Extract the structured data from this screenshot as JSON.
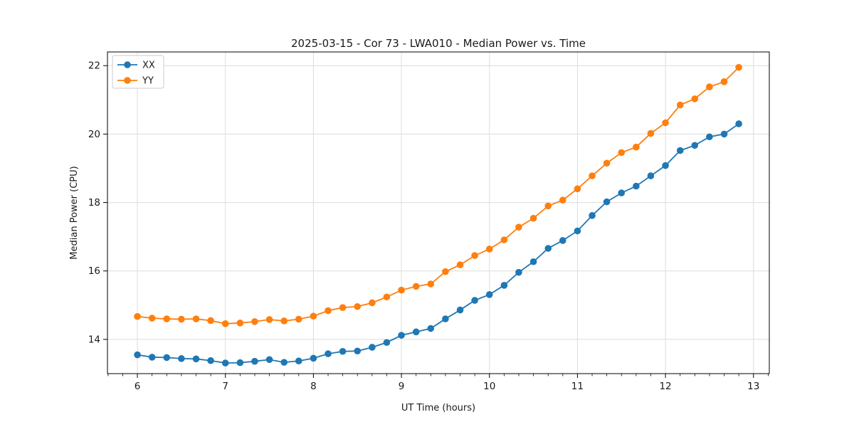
{
  "figure": {
    "background": "#ffffff",
    "spine_color": "#000000",
    "grid_color": "#dcdcdc",
    "tick_label_color": "#1a1a1a"
  },
  "legend": {
    "entries": [
      {
        "label": "XX",
        "color": "#1f77b4"
      },
      {
        "label": "YY",
        "color": "#ff7f0e"
      }
    ],
    "position": "upper left",
    "border_color": "#cccccc"
  },
  "chart_data": {
    "type": "line",
    "title": "2025-03-15 - Cor 73 - LWA010 - Median Power vs. Time",
    "xlabel": "UT Time (hours)",
    "ylabel": "Median Power (CPU)",
    "xlim": [
      5.66,
      13.18
    ],
    "ylim": [
      13.0,
      22.4
    ],
    "x_ticks": [
      6,
      7,
      8,
      9,
      10,
      11,
      12,
      13
    ],
    "y_ticks": [
      14,
      16,
      18,
      20,
      22
    ],
    "x_minor_tick_step": 0.16667,
    "grid": true,
    "legend_position": "upper left",
    "marker": "circle",
    "x": [
      6.0,
      6.167,
      6.333,
      6.5,
      6.667,
      6.833,
      7.0,
      7.167,
      7.333,
      7.5,
      7.667,
      7.833,
      8.0,
      8.167,
      8.333,
      8.5,
      8.667,
      8.833,
      9.0,
      9.167,
      9.333,
      9.5,
      9.667,
      9.833,
      10.0,
      10.167,
      10.333,
      10.5,
      10.667,
      10.833,
      11.0,
      11.167,
      11.333,
      11.5,
      11.667,
      11.833,
      12.0,
      12.167,
      12.333,
      12.5,
      12.667,
      12.833
    ],
    "series": [
      {
        "name": "XX",
        "color": "#1f77b4",
        "values": [
          13.55,
          13.48,
          13.47,
          13.44,
          13.43,
          13.38,
          13.31,
          13.32,
          13.36,
          13.41,
          13.33,
          13.37,
          13.45,
          13.58,
          13.65,
          13.66,
          13.77,
          13.91,
          14.12,
          14.22,
          14.32,
          14.6,
          14.86,
          15.14,
          15.31,
          15.58,
          15.96,
          16.27,
          16.66,
          16.89,
          17.17,
          17.62,
          18.02,
          18.28,
          18.48,
          18.78,
          19.08,
          19.52,
          19.67,
          19.92,
          20.0,
          20.3
        ]
      },
      {
        "name": "YY",
        "color": "#ff7f0e",
        "values": [
          14.67,
          14.62,
          14.6,
          14.59,
          14.6,
          14.55,
          14.46,
          14.48,
          14.52,
          14.58,
          14.54,
          14.59,
          14.68,
          14.84,
          14.93,
          14.96,
          15.07,
          15.24,
          15.44,
          15.55,
          15.62,
          15.98,
          16.18,
          16.45,
          16.64,
          16.91,
          17.28,
          17.54,
          17.9,
          18.07,
          18.4,
          18.78,
          19.15,
          19.46,
          19.62,
          20.02,
          20.33,
          20.85,
          21.03,
          21.38,
          21.53,
          21.95
        ]
      }
    ]
  }
}
